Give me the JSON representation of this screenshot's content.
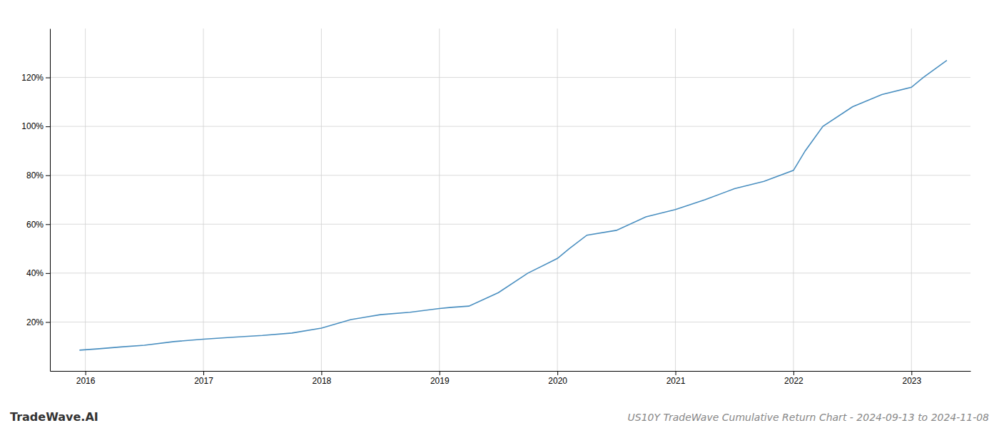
{
  "chart_data": {
    "type": "line",
    "title": "US10Y TradeWave Cumulative Return Chart - 2024-09-13 to 2024-11-08",
    "annotations": [
      "TradeWave.AI"
    ],
    "x": [
      2015.95,
      2016.1,
      2016.3,
      2016.5,
      2016.75,
      2017.0,
      2017.25,
      2017.5,
      2017.75,
      2018.0,
      2018.25,
      2018.5,
      2018.75,
      2019.0,
      2019.1,
      2019.25,
      2019.5,
      2019.75,
      2020.0,
      2020.1,
      2020.25,
      2020.5,
      2020.75,
      2021.0,
      2021.25,
      2021.5,
      2021.75,
      2022.0,
      2022.1,
      2022.25,
      2022.5,
      2022.75,
      2023.0,
      2023.1,
      2023.3
    ],
    "values": [
      8.5,
      9.0,
      9.8,
      10.5,
      12.0,
      13.0,
      13.8,
      14.5,
      15.5,
      17.5,
      21.0,
      23.0,
      24.0,
      25.5,
      26.0,
      26.5,
      32.0,
      40.0,
      46.0,
      50.0,
      55.5,
      57.5,
      63.0,
      66.0,
      70.0,
      74.5,
      77.5,
      82.0,
      90.0,
      100.0,
      108.0,
      113.0,
      116.0,
      120.0,
      127.0
    ],
    "color": "#4a8fc0",
    "xlim": [
      2015.7,
      2023.5
    ],
    "ylim": [
      0,
      140
    ],
    "xticks": [
      2016,
      2017,
      2018,
      2019,
      2020,
      2021,
      2022,
      2023
    ],
    "yticks": [
      {
        "value": 20,
        "label": "20%"
      },
      {
        "value": 40,
        "label": "40%"
      },
      {
        "value": 60,
        "label": "60%"
      },
      {
        "value": 80,
        "label": "80%"
      },
      {
        "value": 100,
        "label": "100%"
      },
      {
        "value": 120,
        "label": "120%"
      }
    ],
    "grid": true
  }
}
